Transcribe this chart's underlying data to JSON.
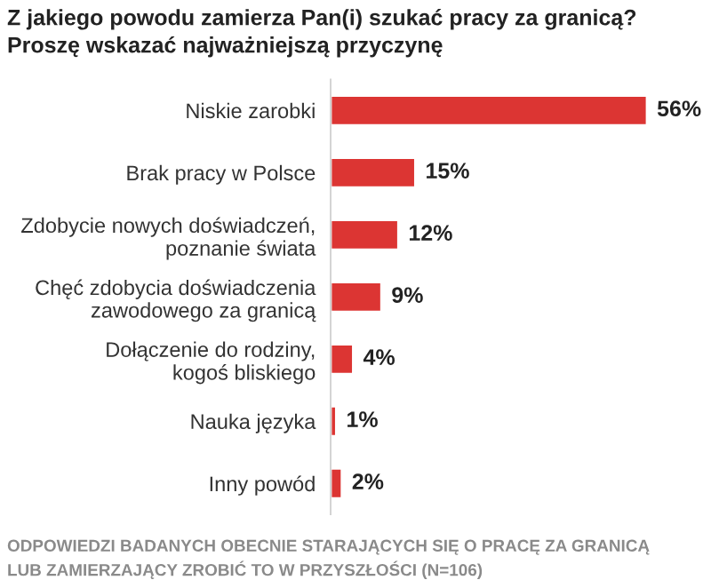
{
  "chart_data": {
    "type": "bar",
    "orientation": "horizontal",
    "title": "Z jakiego powodu zamierza Pan(i) szukać pracy za granicą?\nProszę wskazać najważniejszą przyczynę",
    "categories": [
      "Niskie zarobki",
      "Brak pracy w Polsce",
      "Zdobycie nowych doświadczeń,\npoznanie świata",
      "Chęć zdobycia doświadczenia\nzawodowego za granicą",
      "Dołączenie do rodziny,\nkogoś bliskiego",
      "Nauka języka",
      "Inny powód"
    ],
    "values": [
      56,
      15,
      12,
      9,
      4,
      1,
      2
    ],
    "value_labels": [
      "56%",
      "15%",
      "12%",
      "9%",
      "4%",
      "1%",
      "2%"
    ],
    "color": "#dc3533",
    "grid": false,
    "annotations": [
      "ODPOWIEDZI BADANYCH OBECNIE STARAJĄCYCH SIĘ O PRACĘ ZA GRANICĄ\nLUB ZAMIERZAJĄCY ZROBIĆ TO W PRZYSZŁOŚCI (N=106)"
    ]
  }
}
